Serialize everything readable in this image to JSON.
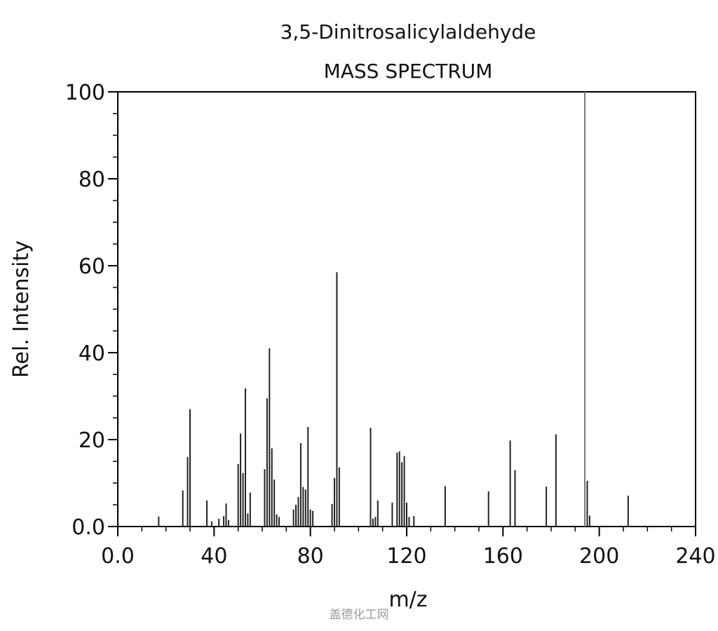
{
  "chart_data": {
    "type": "bar",
    "title": "3,5-Dinitrosalicylaldehyde",
    "subtitle": "MASS SPECTRUM",
    "xlabel": "m/z",
    "ylabel": "Rel. Intensity",
    "xlim": [
      0,
      240
    ],
    "ylim": [
      0,
      100
    ],
    "xticks": [
      "0.0",
      "40",
      "80",
      "120",
      "160",
      "200",
      "240"
    ],
    "yticks": [
      "0.0",
      "20",
      "40",
      "60",
      "80",
      "100"
    ],
    "x": [
      17,
      27,
      29,
      30,
      37,
      39,
      42,
      44,
      45,
      46,
      50,
      51,
      52,
      53,
      54,
      55,
      61,
      62,
      63,
      64,
      65,
      66,
      67,
      73,
      74,
      75,
      76,
      77,
      78,
      79,
      80,
      81,
      89,
      90,
      91,
      92,
      105,
      106,
      107,
      108,
      114,
      116,
      117,
      118,
      119,
      120,
      121,
      123,
      136,
      154,
      163,
      165,
      178,
      182,
      194,
      195,
      196,
      212
    ],
    "values": [
      2.3,
      8.3,
      16,
      27,
      6,
      1.2,
      1.8,
      2.4,
      5.3,
      1.5,
      14.4,
      21.4,
      12.3,
      31.8,
      3,
      7.8,
      13.2,
      29.5,
      41,
      18,
      10.8,
      2.8,
      2.2,
      3.9,
      5,
      6.8,
      19.2,
      9.1,
      8.5,
      22.9,
      3.9,
      3.6,
      5.2,
      11.2,
      58.5,
      13.6,
      22.7,
      1.8,
      2.2,
      6,
      5.5,
      17,
      17.3,
      14.8,
      16.2,
      5.5,
      2.2,
      2.4,
      9.3,
      8.1,
      19.8,
      13,
      9.2,
      21.2,
      100,
      10.5,
      2.5,
      7.1
    ],
    "grid": false
  },
  "watermark": "盖德化工网"
}
